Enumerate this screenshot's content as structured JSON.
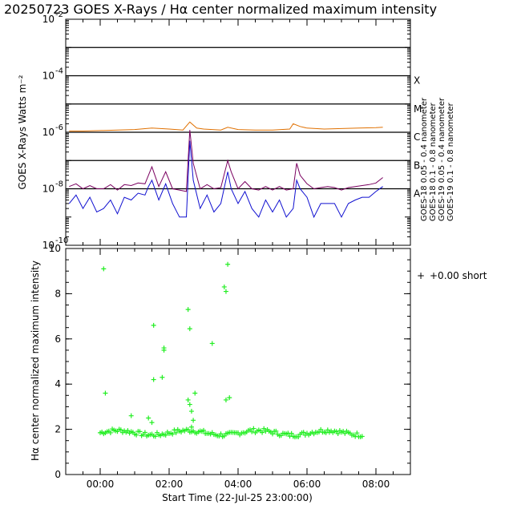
{
  "colors": {
    "goes18_005": "#1010d0",
    "goes18_01": "#7a0060",
    "goes19_01": "#e07000",
    "halpha": "#22ee22",
    "axes": "#000000"
  },
  "chart_data": [
    {
      "type": "line",
      "title": "20250723 GOES X-Rays / Hα center normalized maximum intensity",
      "ylabel": "GOES X-Rays Watts m⁻²",
      "yscale": "log",
      "ylim": [
        1e-10,
        0.01
      ],
      "xlim": [
        -1.0,
        9.0
      ],
      "y_tick_labels": [
        {
          "value": 0.01,
          "mantissa": "10",
          "exp": "-2"
        },
        {
          "value": 0.0001,
          "mantissa": "10",
          "exp": "-4"
        },
        {
          "value": 1e-06,
          "mantissa": "10",
          "exp": "-6"
        },
        {
          "value": 1e-08,
          "mantissa": "10",
          "exp": "-8"
        },
        {
          "value": 1e-10,
          "mantissa": "10",
          "exp": "-10"
        }
      ],
      "flare_levels": [
        {
          "label": "X",
          "value": 0.0001
        },
        {
          "label": "M",
          "value": 1e-05
        },
        {
          "label": "C",
          "value": 1e-06
        },
        {
          "label": "B",
          "value": 1e-07
        },
        {
          "label": "A",
          "value": 1e-08
        }
      ],
      "threshold_lines": [
        0.001,
        0.0001,
        1e-05,
        1e-06,
        1e-07,
        1e-08
      ],
      "legend": [
        {
          "label": "GOES-18 0.05 - 0.4 nanometer",
          "color_key": "goes18_005"
        },
        {
          "label": "GOES-18 0.1 - 0.8 nanometer",
          "color_key": "goes18_01"
        },
        {
          "label": "GOES-19 0.05 - 0.4 nanometer",
          "color_key": "goes18_01"
        },
        {
          "label": "GOES-19 0.1 - 0.8 nanometer",
          "color_key": "goes19_01"
        }
      ],
      "series": [
        {
          "name": "GOES-18 0.05 - 0.4 nanometer",
          "color_key": "goes18_005",
          "x": [
            -0.9,
            -0.7,
            -0.5,
            -0.3,
            -0.1,
            0.1,
            0.3,
            0.5,
            0.7,
            0.9,
            1.1,
            1.3,
            1.4,
            1.5,
            1.7,
            1.9,
            2.1,
            2.3,
            2.5,
            2.6,
            2.7,
            2.9,
            3.1,
            3.3,
            3.5,
            3.7,
            3.8,
            4.0,
            4.2,
            4.4,
            4.6,
            4.8,
            5.0,
            5.2,
            5.4,
            5.6,
            5.7,
            5.8,
            6.0,
            6.2,
            6.4,
            6.6,
            6.8,
            7.0,
            7.2,
            7.4,
            7.6,
            7.8,
            8.0,
            8.2
          ],
          "values": [
            3e-09,
            6e-09,
            2e-09,
            5e-09,
            1.5e-09,
            2e-09,
            4e-09,
            1.3e-09,
            5e-09,
            4e-09,
            7e-09,
            6e-09,
            1.2e-08,
            2e-08,
            4e-09,
            1.5e-08,
            3e-09,
            1e-09,
            1e-09,
            5e-07,
            2e-08,
            2e-09,
            6e-09,
            1.5e-09,
            3e-09,
            4e-08,
            1e-08,
            3e-09,
            8e-09,
            2e-09,
            1e-09,
            4e-09,
            1.5e-09,
            4e-09,
            1e-09,
            2e-09,
            2e-08,
            1e-08,
            5e-09,
            1e-09,
            3e-09,
            3e-09,
            3e-09,
            1e-09,
            3e-09,
            4e-09,
            5e-09,
            5e-09,
            8e-09,
            1.2e-08
          ]
        },
        {
          "name": "GOES-18 0.1 - 0.8 nanometer",
          "color_key": "goes18_01",
          "x": [
            -0.9,
            -0.7,
            -0.5,
            -0.3,
            -0.1,
            0.1,
            0.3,
            0.5,
            0.7,
            0.9,
            1.1,
            1.3,
            1.4,
            1.5,
            1.7,
            1.9,
            2.1,
            2.3,
            2.5,
            2.6,
            2.7,
            2.9,
            3.1,
            3.3,
            3.5,
            3.7,
            3.8,
            4.0,
            4.2,
            4.4,
            4.6,
            4.8,
            5.0,
            5.2,
            5.4,
            5.6,
            5.7,
            5.8,
            6.0,
            6.2,
            6.4,
            6.6,
            6.8,
            7.0,
            7.2,
            7.4,
            7.6,
            7.8,
            8.0,
            8.2
          ],
          "values": [
            1.2e-08,
            1.5e-08,
            1e-08,
            1.3e-08,
            1e-08,
            1e-08,
            1.4e-08,
            9e-09,
            1.4e-08,
            1.3e-08,
            1.6e-08,
            1.5e-08,
            3e-08,
            6e-08,
            1.2e-08,
            4e-08,
            1e-08,
            9e-09,
            8e-09,
            1.2e-06,
            8e-08,
            1e-08,
            1.4e-08,
            1e-08,
            1.1e-08,
            1e-07,
            4e-08,
            1e-08,
            1.8e-08,
            1e-08,
            9e-09,
            1.2e-08,
            9e-09,
            1.2e-08,
            9e-09,
            1e-08,
            8e-08,
            3e-08,
            1.5e-08,
            1e-08,
            1.1e-08,
            1.2e-08,
            1.1e-08,
            9e-09,
            1.1e-08,
            1.2e-08,
            1.3e-08,
            1.4e-08,
            1.6e-08,
            2.5e-08
          ]
        },
        {
          "name": "GOES-19 0.1 - 0.8 nanometer",
          "color_key": "goes19_01",
          "x": [
            -0.9,
            -0.5,
            0.0,
            0.5,
            1.0,
            1.5,
            2.0,
            2.4,
            2.6,
            2.8,
            3.0,
            3.5,
            3.7,
            4.0,
            4.5,
            5.0,
            5.5,
            5.6,
            5.8,
            6.0,
            6.5,
            7.0,
            7.5,
            8.0,
            8.2
          ],
          "values": [
            1.1e-06,
            1.1e-06,
            1.15e-06,
            1.2e-06,
            1.25e-06,
            1.4e-06,
            1.3e-06,
            1.2e-06,
            2.3e-06,
            1.4e-06,
            1.3e-06,
            1.2e-06,
            1.5e-06,
            1.25e-06,
            1.2e-06,
            1.2e-06,
            1.3e-06,
            2e-06,
            1.6e-06,
            1.4e-06,
            1.3e-06,
            1.35e-06,
            1.4e-06,
            1.45e-06,
            1.5e-06
          ]
        }
      ]
    },
    {
      "type": "scatter",
      "ylabel": "Hα center normalized maximum intensity",
      "xlabel": "Start Time (22-Jul-25 23:00:00)",
      "ylim": [
        0,
        10
      ],
      "xlim": [
        -1.0,
        9.0
      ],
      "x_tick_labels": [
        {
          "value": 0,
          "label": "00:00"
        },
        {
          "value": 2,
          "label": "02:00"
        },
        {
          "value": 4,
          "label": "04:00"
        },
        {
          "value": 6,
          "label": "06:00"
        },
        {
          "value": 8,
          "label": "08:00"
        }
      ],
      "y_ticks": [
        0,
        2,
        4,
        6,
        8,
        10
      ],
      "legend": [
        {
          "marker": "+",
          "label": "+0.00 short",
          "color_key": "halpha"
        }
      ],
      "outliers": {
        "x": [
          0.1,
          0.15,
          1.55,
          1.55,
          1.85,
          1.85,
          1.8,
          2.55,
          2.6,
          2.55,
          3.25,
          3.6,
          3.65,
          3.7,
          2.6,
          2.65,
          2.75,
          3.65,
          3.75,
          2.7,
          2.65,
          1.4,
          1.5,
          0.9
        ],
        "values": [
          9.1,
          3.6,
          6.6,
          4.2,
          5.6,
          5.5,
          4.3,
          7.3,
          6.45,
          3.3,
          5.8,
          8.3,
          8.1,
          9.3,
          3.1,
          2.8,
          3.6,
          3.3,
          3.4,
          2.4,
          2.1,
          2.5,
          2.3,
          2.6
        ]
      },
      "baseline": {
        "x_start": 0.0,
        "x_end": 7.6,
        "step": 0.05,
        "mean": 1.85,
        "amplitude": 0.2
      }
    }
  ]
}
